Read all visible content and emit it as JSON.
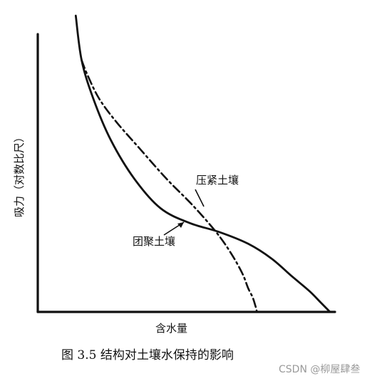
{
  "chart_data": {
    "type": "line",
    "title": "",
    "xlabel": "含水量",
    "ylabel": "吸力（对数比尺）",
    "grid": false,
    "legend": "none",
    "series": [
      {
        "name": "团聚土壤",
        "style": "solid",
        "x": [
          0.13,
          0.15,
          0.19,
          0.25,
          0.33,
          0.42,
          0.52,
          0.62,
          0.72,
          0.8,
          0.87,
          0.93,
          0.97,
          1.0
        ],
        "y": [
          1.0,
          0.85,
          0.72,
          0.58,
          0.45,
          0.35,
          0.3,
          0.27,
          0.23,
          0.18,
          0.12,
          0.07,
          0.03,
          0.0
        ]
      },
      {
        "name": "压紧土壤",
        "style": "dash-dot",
        "x": [
          0.15,
          0.17,
          0.21,
          0.27,
          0.35,
          0.44,
          0.53,
          0.61,
          0.66,
          0.7,
          0.72,
          0.735,
          0.745,
          0.75
        ],
        "y": [
          0.85,
          0.8,
          0.72,
          0.64,
          0.55,
          0.45,
          0.36,
          0.27,
          0.2,
          0.13,
          0.08,
          0.05,
          0.02,
          0.0
        ]
      }
    ],
    "labels": [
      {
        "text": "压紧土壤"
      },
      {
        "text": "团聚土壤"
      }
    ]
  },
  "caption": "图 3.5    结构对土壤水保持的影响",
  "watermark": "CSDN @柳屋肆叁"
}
